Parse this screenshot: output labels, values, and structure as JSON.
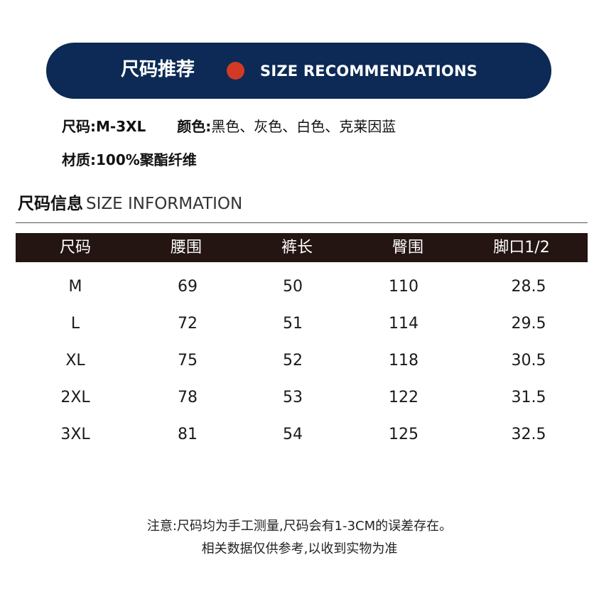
{
  "banner": {
    "title_cn": "尺码推荐",
    "title_en": "SIZE RECOMMENDATIONS",
    "dot_color": "#d23a26",
    "background_color": "#0c2a55"
  },
  "info": {
    "size_label": "尺码:",
    "size_value": "M-3XL",
    "color_label": "颜色:",
    "color_value": "黑色、灰色、白色、克莱因蓝",
    "material_label": "材质:",
    "material_value": "100%聚酯纤维"
  },
  "size_info": {
    "title_cn": "尺码信息",
    "title_en": "SIZE INFORMATION"
  },
  "table": {
    "header_color": "#241512",
    "columns": [
      "尺码",
      "腰围",
      "裤长",
      "臀围",
      "脚口1/2"
    ],
    "rows": [
      [
        "M",
        "69",
        "50",
        "110",
        "28.5"
      ],
      [
        "L",
        "72",
        "51",
        "114",
        "29.5"
      ],
      [
        "XL",
        "75",
        "52",
        "118",
        "30.5"
      ],
      [
        "2XL",
        "78",
        "53",
        "122",
        "31.5"
      ],
      [
        "3XL",
        "81",
        "54",
        "125",
        "32.5"
      ]
    ]
  },
  "note": {
    "line1": "注意:尺码均为手工测量,尺码会有1-3CM的误差存在。",
    "line2": "相关数据仅供参考,以收到实物为准"
  }
}
